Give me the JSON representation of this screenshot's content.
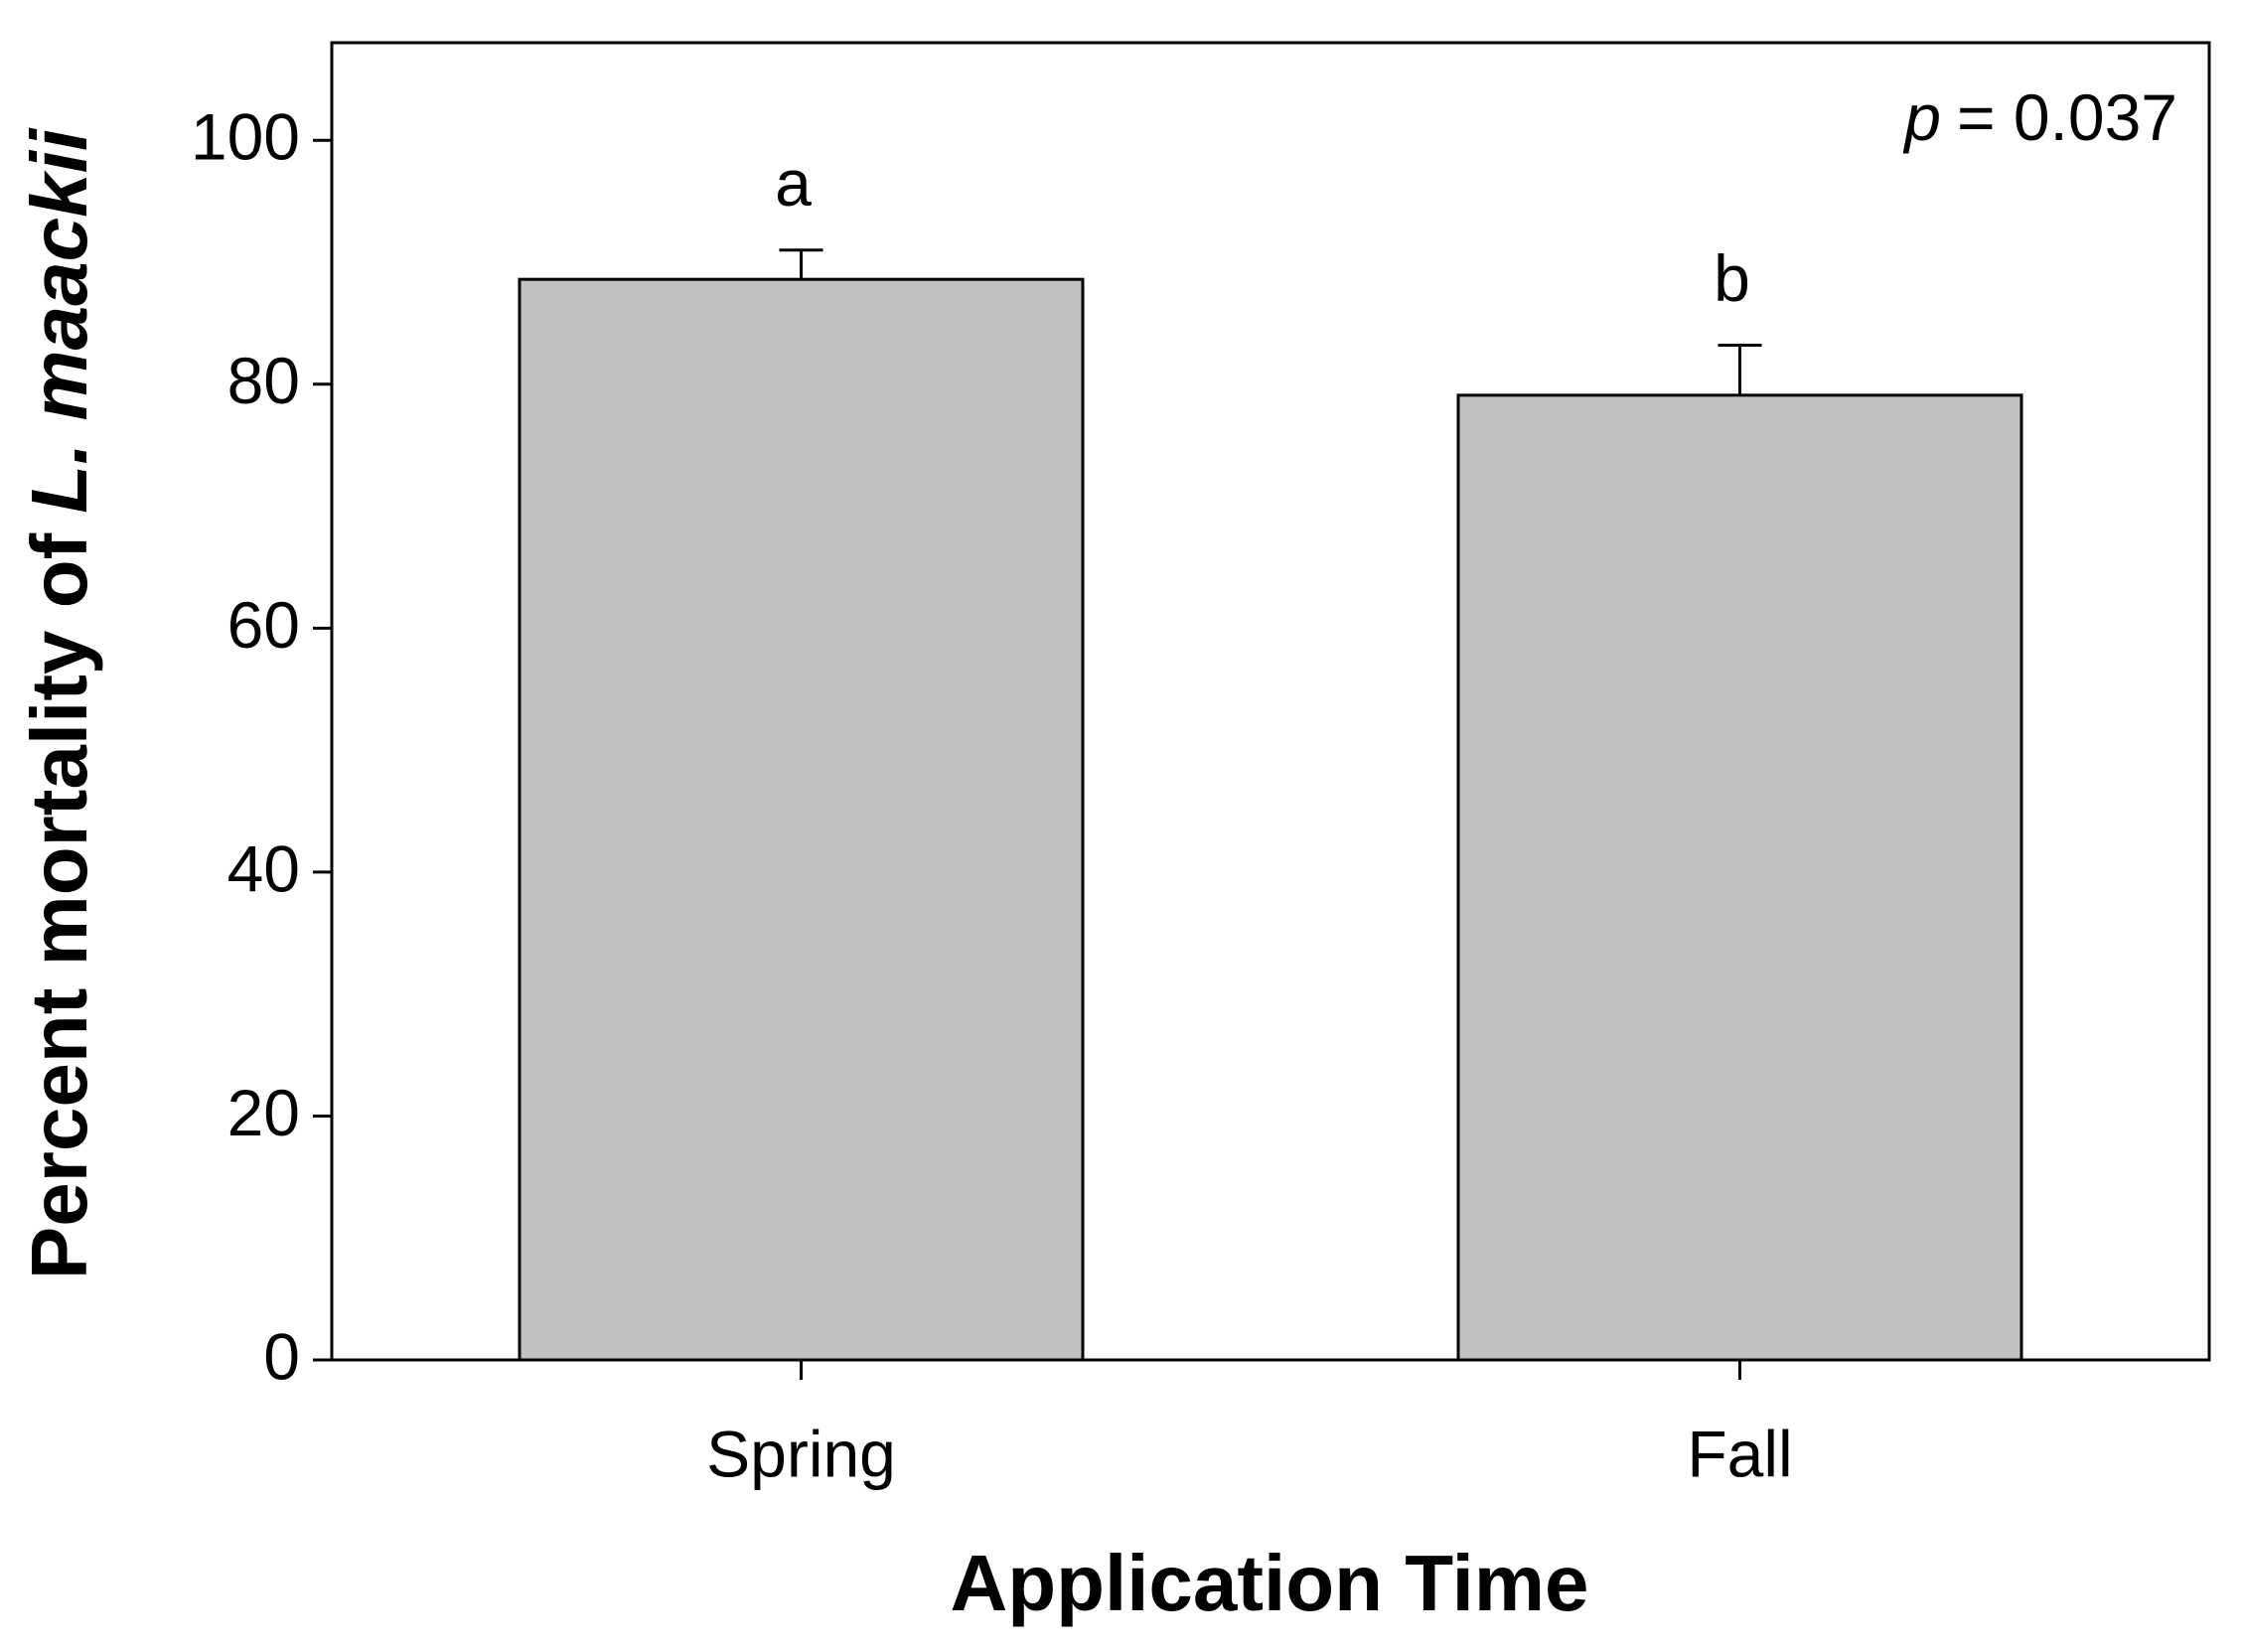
{
  "chart_data": {
    "type": "bar",
    "y_label": {
      "text": "Percent mortality of",
      "italic": "L. maackii"
    },
    "x_label": "Application Time",
    "annotation": {
      "italic": "p",
      "text": "= 0.037"
    },
    "categories": [
      "Spring",
      "Fall"
    ],
    "values": [
      88.6,
      79.1
    ],
    "errors": [
      2.4,
      4.1
    ],
    "significance_letters": [
      "a",
      "b"
    ],
    "color": "#c0c0c0",
    "ylim": [
      0,
      108
    ],
    "yticks": [
      0,
      20,
      40,
      60,
      80,
      100
    ],
    "grid": false
  }
}
